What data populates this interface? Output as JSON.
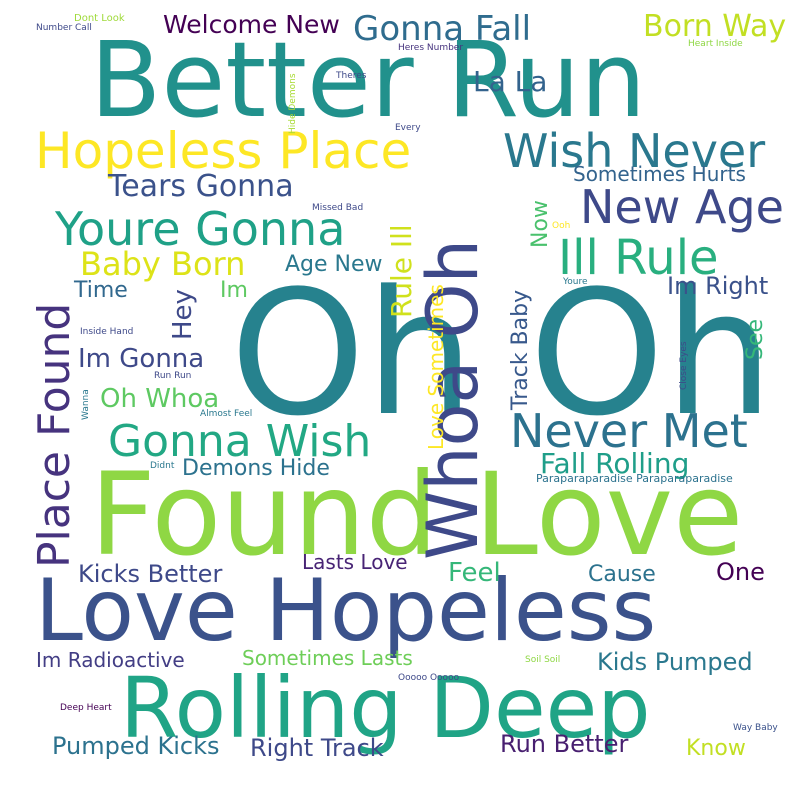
{
  "word_cloud": {
    "words": [
      {
        "text": "Oh Oh",
        "color": "#26828e"
      },
      {
        "text": "Found Love",
        "color": "#8fd744"
      },
      {
        "text": "Better Run",
        "color": "#21918c"
      },
      {
        "text": "Love Hopeless",
        "color": "#3b528b"
      },
      {
        "text": "Rolling Deep",
        "color": "#20a486"
      },
      {
        "text": "Whoa Oh",
        "color": "#3e4989"
      },
      {
        "text": "Hopeless Place",
        "color": "#fde725"
      },
      {
        "text": "Place Found",
        "color": "#46337e"
      },
      {
        "text": "Youre Gonna",
        "color": "#1fa187"
      },
      {
        "text": "Wish Never",
        "color": "#2a788e"
      },
      {
        "text": "New Age",
        "color": "#3e4989"
      },
      {
        "text": "Ill Rule",
        "color": "#29af7f"
      },
      {
        "text": "Never Met",
        "color": "#2c728e"
      },
      {
        "text": "Gonna Wish",
        "color": "#22a884"
      },
      {
        "text": "Gonna Fall",
        "color": "#2f6c8e"
      },
      {
        "text": "Born Way",
        "color": "#c2df23"
      },
      {
        "text": "Welcome New",
        "color": "#440154"
      },
      {
        "text": "La La",
        "color": "#33638d"
      },
      {
        "text": "Tears Gonna",
        "color": "#3b528b"
      },
      {
        "text": "Baby Born",
        "color": "#dde318"
      },
      {
        "text": "Rule Ill",
        "color": "#d0e11c"
      },
      {
        "text": "Love Sometimes",
        "color": "#fde725"
      },
      {
        "text": "Track Baby",
        "color": "#38598c"
      },
      {
        "text": "Now",
        "color": "#4ac16d"
      },
      {
        "text": "Sometimes Hurts",
        "color": "#33638d"
      },
      {
        "text": "Im Right",
        "color": "#3b528b"
      },
      {
        "text": "Age New",
        "color": "#2a788e"
      },
      {
        "text": "Time",
        "color": "#31688e"
      },
      {
        "text": "Im",
        "color": "#5ec962"
      },
      {
        "text": "Hey",
        "color": "#3e4989"
      },
      {
        "text": "Im Gonna",
        "color": "#3e4989"
      },
      {
        "text": "Oh Whoa",
        "color": "#5ec962"
      },
      {
        "text": "Fall Rolling",
        "color": "#1f9e89"
      },
      {
        "text": "Demons Hide",
        "color": "#2c728e"
      },
      {
        "text": "See",
        "color": "#35b779"
      },
      {
        "text": "Kicks Better",
        "color": "#3e4989"
      },
      {
        "text": "Lasts Love",
        "color": "#482475"
      },
      {
        "text": "Feel",
        "color": "#35b779"
      },
      {
        "text": "Cause",
        "color": "#2c728e"
      },
      {
        "text": "One",
        "color": "#440154"
      },
      {
        "text": "Im Radioactive",
        "color": "#433e85"
      },
      {
        "text": "Sometimes Lasts",
        "color": "#6ece58"
      },
      {
        "text": "Kids Pumped",
        "color": "#2a788e"
      },
      {
        "text": "Pumped Kicks",
        "color": "#2c728e"
      },
      {
        "text": "Right Track",
        "color": "#3e4989"
      },
      {
        "text": "Run Better",
        "color": "#481f70"
      },
      {
        "text": "Know",
        "color": "#c2df23"
      },
      {
        "text": "Paraparaparadise Paraparaparadise",
        "color": "#2c728e"
      },
      {
        "text": "Dont Look",
        "color": "#9fda3a"
      },
      {
        "text": "Number Call",
        "color": "#3e4989"
      },
      {
        "text": "Heres Number",
        "color": "#46337e"
      },
      {
        "text": "Heart Inside",
        "color": "#8fd744"
      },
      {
        "text": "Theres",
        "color": "#3e4989"
      },
      {
        "text": "Hide Demons",
        "color": "#a8db34"
      },
      {
        "text": "Every",
        "color": "#3e4989"
      },
      {
        "text": "Missed Bad",
        "color": "#3e4989"
      },
      {
        "text": "Ooh",
        "color": "#fde725"
      },
      {
        "text": "Youre",
        "color": "#2a788e"
      },
      {
        "text": "Inside Hand",
        "color": "#3e4989"
      },
      {
        "text": "Run Run",
        "color": "#3e4989"
      },
      {
        "text": "Close Eyes",
        "color": "#3e4989"
      },
      {
        "text": "Wanna",
        "color": "#2a788e"
      },
      {
        "text": "Almost Feel",
        "color": "#2a788e"
      },
      {
        "text": "Didnt",
        "color": "#2a788e"
      },
      {
        "text": "Soil Soil",
        "color": "#8fd744"
      },
      {
        "text": "Ooooo Ooooo",
        "color": "#3e4989"
      },
      {
        "text": "Deep Heart",
        "color": "#440154"
      },
      {
        "text": "Way Baby",
        "color": "#3b528b"
      }
    ]
  }
}
